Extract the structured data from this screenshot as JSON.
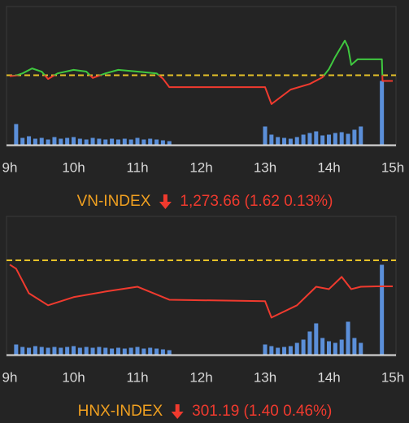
{
  "chart_data": [
    {
      "type": "line",
      "title": "VN-INDEX",
      "quote": "1,273.66 (1.62 0.13%)",
      "x": [
        9.0,
        9.1,
        9.2,
        9.35,
        9.5,
        9.6,
        9.75,
        10.0,
        10.2,
        10.3,
        10.5,
        10.7,
        11.0,
        11.3,
        11.4,
        11.5,
        13.0,
        13.1,
        13.4,
        13.7,
        13.9,
        14.0,
        14.1,
        14.25,
        14.3,
        14.35,
        14.45,
        14.83,
        14.84,
        15.0
      ],
      "values": [
        1275.0,
        1275.2,
        1275.8,
        1277.2,
        1276.3,
        1274.2,
        1275.8,
        1276.8,
        1276.3,
        1274.5,
        1275.8,
        1276.8,
        1276.3,
        1275.8,
        1274.3,
        1271.9,
        1271.9,
        1267.1,
        1271.2,
        1272.8,
        1274.7,
        1277.0,
        1280.5,
        1285.1,
        1283.2,
        1278.2,
        1279.8,
        1279.8,
        1273.66,
        1273.66
      ],
      "reference": 1275.28,
      "up_color": "#3fc93f",
      "down_color": "#f03a2e",
      "reference_color": "#e6c229",
      "volume": {
        "x": [
          9.1,
          9.2,
          9.3,
          9.4,
          9.5,
          9.6,
          9.7,
          9.8,
          9.9,
          10.0,
          10.1,
          10.2,
          10.3,
          10.4,
          10.5,
          10.6,
          10.7,
          10.8,
          10.9,
          11.0,
          11.1,
          11.2,
          11.3,
          11.4,
          11.5,
          13.0,
          13.1,
          13.2,
          13.3,
          13.4,
          13.5,
          13.6,
          13.7,
          13.8,
          13.9,
          14.0,
          14.1,
          14.2,
          14.3,
          14.4,
          14.5,
          14.83
        ],
        "values": [
          25,
          8,
          10,
          7,
          8,
          6,
          9,
          7,
          8,
          9,
          7,
          6,
          8,
          7,
          6,
          7,
          6,
          7,
          6,
          8,
          6,
          7,
          6,
          5,
          4,
          22,
          12,
          9,
          8,
          7,
          9,
          12,
          14,
          16,
          11,
          12,
          14,
          15,
          13,
          18,
          22,
          78
        ],
        "color": "#5b8fd9",
        "ylim": [
          0,
          100
        ]
      },
      "xlim": [
        9,
        15
      ],
      "ylim": [
        1262,
        1292
      ],
      "xticks": [
        {
          "value": 9,
          "label": "9h"
        },
        {
          "value": 10,
          "label": "10h"
        },
        {
          "value": 11,
          "label": "11h"
        },
        {
          "value": 12,
          "label": "12h"
        },
        {
          "value": 13,
          "label": "13h"
        },
        {
          "value": 14,
          "label": "14h"
        },
        {
          "value": 15,
          "label": "15h"
        }
      ]
    },
    {
      "type": "line",
      "title": "HNX-INDEX",
      "quote": "301.19 (1.40 0.46%)",
      "x": [
        9.0,
        9.1,
        9.3,
        9.6,
        10.0,
        10.5,
        11.0,
        11.5,
        13.0,
        13.1,
        13.5,
        13.8,
        14.0,
        14.2,
        14.35,
        14.5,
        14.75,
        15.0
      ],
      "values": [
        302.36,
        302.14,
        300.82,
        300.17,
        300.61,
        300.91,
        301.17,
        300.47,
        300.39,
        299.51,
        300.17,
        301.17,
        301.04,
        301.7,
        301.04,
        301.17,
        301.19,
        301.19
      ],
      "reference": 302.59,
      "up_color": "#3fc93f",
      "down_color": "#f03a2e",
      "reference_color": "#e6c229",
      "volume": {
        "x": [
          9.1,
          9.2,
          9.3,
          9.4,
          9.5,
          9.6,
          9.7,
          9.8,
          9.9,
          10.0,
          10.1,
          10.2,
          10.3,
          10.4,
          10.5,
          10.6,
          10.7,
          10.8,
          10.9,
          11.0,
          11.1,
          11.2,
          11.3,
          11.4,
          11.5,
          13.0,
          13.1,
          13.2,
          13.3,
          13.4,
          13.5,
          13.6,
          13.7,
          13.8,
          13.9,
          14.0,
          14.1,
          14.2,
          14.3,
          14.4,
          14.5,
          14.83
        ],
        "values": [
          12,
          9,
          8,
          10,
          9,
          8,
          9,
          8,
          9,
          10,
          8,
          9,
          8,
          9,
          8,
          7,
          8,
          7,
          8,
          9,
          7,
          8,
          7,
          6,
          5,
          12,
          10,
          8,
          9,
          10,
          14,
          18,
          28,
          38,
          20,
          16,
          14,
          18,
          40,
          20,
          14,
          110
        ],
        "color": "#5b8fd9",
        "ylim": [
          0,
          100
        ]
      },
      "xlim": [
        9,
        15
      ],
      "ylim": [
        298.74,
        304.43
      ],
      "xticks": [
        {
          "value": 9,
          "label": "9h"
        },
        {
          "value": 10,
          "label": "10h"
        },
        {
          "value": 11,
          "label": "11h"
        },
        {
          "value": 12,
          "label": "12h"
        },
        {
          "value": 13,
          "label": "13h"
        },
        {
          "value": 14,
          "label": "14h"
        },
        {
          "value": 15,
          "label": "15h"
        }
      ]
    }
  ]
}
